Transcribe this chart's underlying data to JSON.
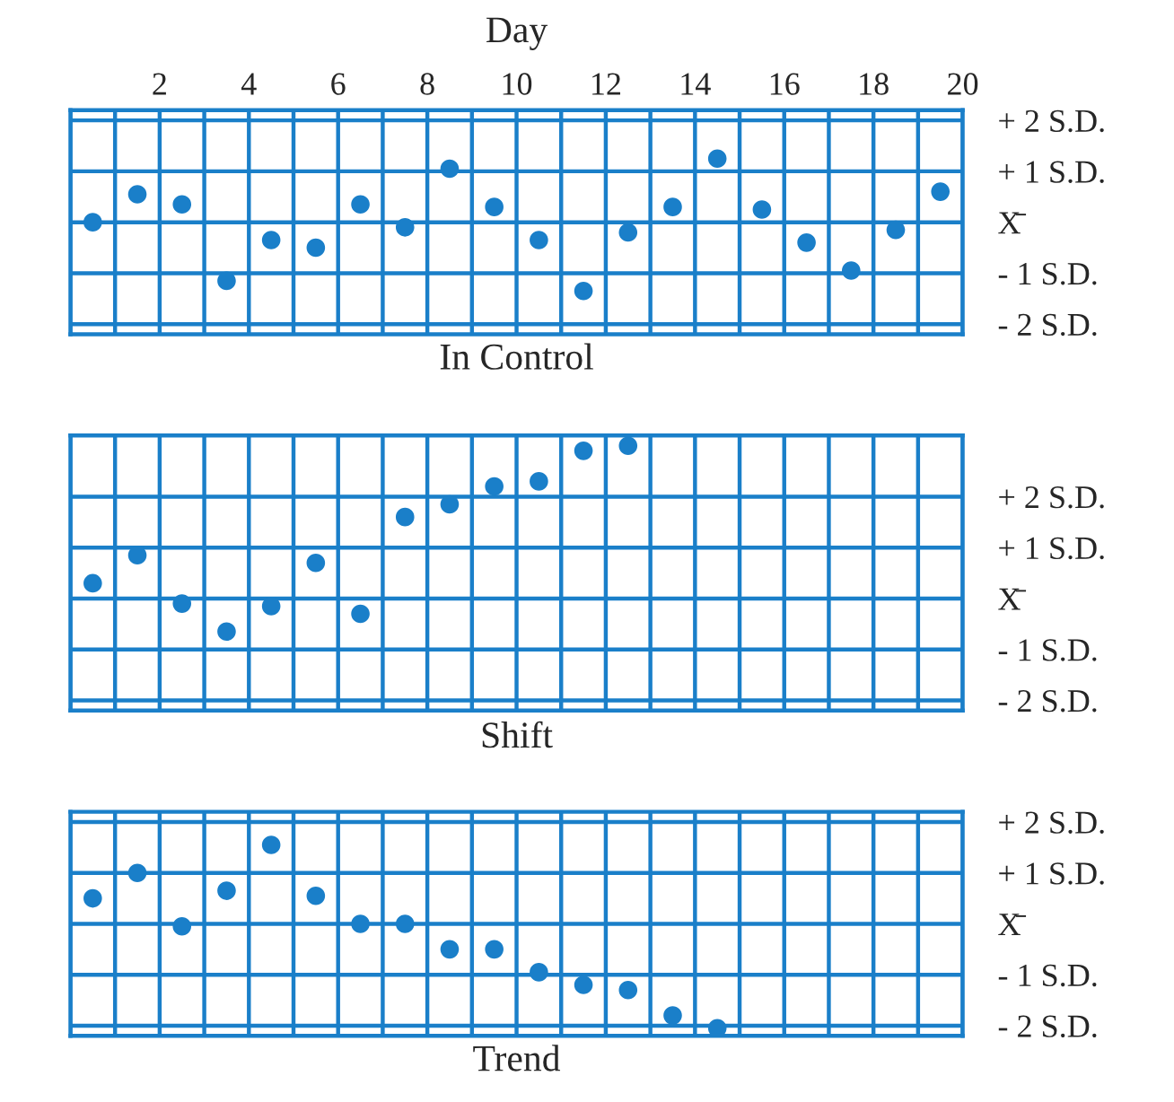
{
  "chart_data": [
    {
      "type": "scatter",
      "title": "In Control",
      "xlabel": "Day",
      "xlim": [
        0,
        20
      ],
      "ylim": [
        -2.2,
        2.2
      ],
      "xticks": [
        {
          "value": 0,
          "label": null
        },
        {
          "value": 1,
          "label": null
        },
        2,
        {
          "value": 3,
          "label": null
        },
        4,
        {
          "value": 5,
          "label": null
        },
        6,
        {
          "value": 7,
          "label": null
        },
        8,
        {
          "value": 9,
          "label": null
        },
        10,
        {
          "value": 11,
          "label": null
        },
        12,
        {
          "value": 13,
          "label": null
        },
        14,
        {
          "value": 15,
          "label": null
        },
        16,
        {
          "value": 17,
          "label": null
        },
        18,
        {
          "value": 19,
          "label": null
        },
        20
      ],
      "yticks": [
        {
          "value": 2,
          "label": "+ 2 S.D."
        },
        {
          "value": 1,
          "label": "+ 1 S.D."
        },
        {
          "value": 0,
          "label": "X̄"
        },
        {
          "value": -1,
          "label": "- 1 S.D."
        },
        {
          "value": -2,
          "label": "- 2 S.D."
        }
      ],
      "grid": true,
      "marker": "circle",
      "series": [
        {
          "color": "#1a7fc9",
          "x": [
            0.5,
            1.5,
            2.5,
            3.5,
            4.5,
            5.5,
            6.5,
            7.5,
            8.5,
            9.5,
            10.5,
            11.5,
            12.5,
            13.5,
            14.5,
            15.5,
            16.5,
            17.5,
            18.5,
            19.5
          ],
          "values": [
            0.0,
            0.55,
            0.35,
            -1.15,
            -0.35,
            -0.5,
            0.35,
            -0.1,
            1.05,
            0.3,
            -0.35,
            -1.35,
            -0.2,
            0.3,
            1.25,
            0.25,
            -0.4,
            -0.95,
            -0.15,
            0.6
          ]
        }
      ]
    },
    {
      "type": "scatter",
      "title": "Shift",
      "xlim": [
        0,
        20
      ],
      "ylim": [
        -2.2,
        3.2
      ],
      "tick_labels": "y",
      "xticks": [
        0,
        1,
        2,
        3,
        4,
        5,
        6,
        7,
        8,
        9,
        10,
        11,
        12,
        13,
        14,
        15,
        16,
        17,
        18,
        19,
        20
      ],
      "yticks": [
        {
          "value": 2,
          "label": "+ 2 S.D."
        },
        {
          "value": 1,
          "label": "+ 1 S.D."
        },
        {
          "value": 0,
          "label": "X̄"
        },
        {
          "value": -1,
          "label": "- 1 S.D."
        },
        {
          "value": -2,
          "label": "- 2 S.D."
        }
      ],
      "grid": true,
      "marker": "circle",
      "series": [
        {
          "color": "#1a7fc9",
          "x": [
            0.5,
            1.5,
            2.5,
            3.5,
            4.5,
            5.5,
            6.5,
            7.5,
            8.5,
            9.5,
            10.5,
            11.5,
            12.5
          ],
          "values": [
            0.3,
            0.85,
            -0.1,
            -0.65,
            -0.15,
            0.7,
            -0.3,
            1.6,
            1.85,
            2.2,
            2.3,
            2.9,
            3.0
          ]
        }
      ]
    },
    {
      "type": "scatter",
      "title": "Trend",
      "xlim": [
        0,
        20
      ],
      "ylim": [
        -2.2,
        2.2
      ],
      "tick_labels": "y",
      "xticks": [
        0,
        1,
        2,
        3,
        4,
        5,
        6,
        7,
        8,
        9,
        10,
        11,
        12,
        13,
        14,
        15,
        16,
        17,
        18,
        19,
        20
      ],
      "yticks": [
        {
          "value": 2,
          "label": "+ 2 S.D."
        },
        {
          "value": 1,
          "label": "+ 1 S.D."
        },
        {
          "value": 0,
          "label": "X̄"
        },
        {
          "value": -1,
          "label": "- 1 S.D."
        },
        {
          "value": -2,
          "label": "- 2 S.D."
        }
      ],
      "grid": true,
      "marker": "circle",
      "series": [
        {
          "color": "#1a7fc9",
          "x": [
            0.5,
            1.5,
            2.5,
            3.5,
            4.5,
            5.5,
            6.5,
            7.5,
            8.5,
            9.5,
            10.5,
            11.5,
            12.5,
            13.5,
            14.5
          ],
          "values": [
            0.5,
            1.0,
            -0.05,
            0.65,
            1.55,
            0.55,
            0.0,
            0.0,
            -0.5,
            -0.5,
            -0.95,
            -1.2,
            -1.3,
            -1.8,
            -2.05
          ]
        }
      ]
    }
  ]
}
